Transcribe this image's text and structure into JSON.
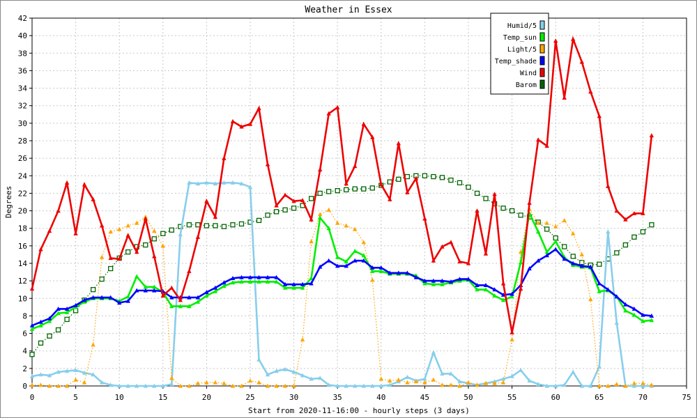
{
  "chart_data": {
    "type": "line",
    "title": "Weather in Essex",
    "xlabel": "Start from 2020-11-16:00 - hourly steps (3 days)",
    "ylabel": "Degrees",
    "xlim": [
      0,
      75
    ],
    "ylim": [
      0,
      42
    ],
    "x_ticks": [
      0,
      5,
      10,
      15,
      20,
      25,
      30,
      35,
      40,
      45,
      50,
      55,
      60,
      65,
      70,
      75
    ],
    "y_ticks": [
      0,
      2,
      4,
      6,
      8,
      10,
      12,
      14,
      16,
      18,
      20,
      22,
      24,
      26,
      28,
      30,
      32,
      34,
      36,
      38,
      40,
      42
    ],
    "grid": true,
    "legend_position": "top-right",
    "series": [
      {
        "name": "Humid/5",
        "color": "#87ceeb",
        "marker": "triangle",
        "line": "solid",
        "values": [
          1.1,
          1.3,
          1.2,
          1.6,
          1.7,
          1.8,
          1.5,
          1.3,
          0.4,
          0.1,
          0.0,
          0.0,
          0.0,
          0.0,
          0.0,
          0.0,
          0.2,
          17.3,
          23.2,
          23.1,
          23.2,
          23.1,
          23.2,
          23.2,
          23.1,
          22.7,
          3.0,
          1.3,
          1.7,
          1.9,
          1.6,
          1.2,
          0.8,
          0.9,
          0.1,
          0.0,
          0.0,
          0.0,
          0.0,
          0.0,
          0.0,
          0.1,
          0.5,
          1.0,
          0.6,
          0.8,
          3.8,
          1.4,
          1.4,
          0.5,
          0.3,
          0.1,
          0.3,
          0.5,
          0.8,
          1.1,
          1.8,
          0.6,
          0.2,
          0.0,
          0.0,
          0.1,
          1.6,
          0.0,
          0.0,
          2.2,
          17.6,
          7.2,
          0.0,
          0.0,
          0.0,
          0.0
        ]
      },
      {
        "name": "Temp_sun",
        "color": "#00ee00",
        "marker": "triangle",
        "line": "solid",
        "values": [
          6.5,
          6.9,
          7.4,
          8.3,
          8.4,
          9.0,
          9.6,
          10.0,
          10.0,
          10.0,
          9.7,
          10.2,
          12.5,
          11.3,
          11.3,
          10.7,
          9.1,
          9.1,
          9.1,
          9.6,
          10.3,
          10.8,
          11.4,
          11.8,
          11.9,
          11.9,
          11.9,
          11.9,
          11.9,
          11.2,
          11.2,
          11.2,
          12.3,
          19.2,
          18.0,
          14.7,
          14.2,
          15.4,
          14.9,
          13.1,
          13.1,
          12.8,
          12.8,
          12.8,
          12.6,
          11.7,
          11.6,
          11.6,
          11.8,
          12.0,
          12.1,
          11.0,
          11.0,
          10.3,
          9.8,
          10.2,
          14.1,
          19.7,
          17.6,
          15.3,
          16.5,
          14.7,
          13.8,
          13.6,
          13.5,
          10.8,
          10.9,
          10.2,
          8.6,
          8.1,
          7.4,
          7.5
        ]
      },
      {
        "name": "Light/5",
        "color": "#ffa500",
        "marker": "triangle",
        "line": "dotted",
        "values": [
          0.1,
          0.1,
          0.0,
          0.0,
          0.0,
          0.7,
          0.4,
          4.7,
          14.7,
          17.6,
          17.9,
          18.3,
          18.6,
          19.3,
          17.7,
          16.0,
          0.9,
          0.0,
          0.0,
          0.3,
          0.4,
          0.4,
          0.3,
          0.0,
          0.0,
          0.6,
          0.4,
          0.0,
          0.0,
          0.0,
          0.0,
          5.3,
          16.5,
          19.6,
          20.1,
          18.6,
          18.3,
          17.9,
          16.4,
          12.1,
          0.8,
          0.6,
          0.7,
          0.4,
          0.5,
          0.4,
          0.7,
          0.1,
          0.1,
          0.0,
          0.4,
          0.1,
          0.3,
          0.3,
          0.4,
          5.3,
          15.3,
          20.2,
          18.6,
          18.6,
          18.2,
          18.9,
          17.4,
          15.0,
          9.9,
          0.0,
          0.0,
          0.2,
          0.0,
          0.3,
          0.3,
          0.1
        ]
      },
      {
        "name": "Temp_shade",
        "color": "#0000ff",
        "marker": "triangle",
        "line": "solid",
        "values": [
          6.9,
          7.3,
          7.7,
          8.8,
          8.8,
          9.2,
          9.8,
          10.1,
          10.1,
          10.1,
          9.5,
          9.7,
          10.9,
          10.9,
          10.9,
          10.8,
          10.1,
          10.1,
          10.1,
          10.1,
          10.7,
          11.2,
          11.8,
          12.3,
          12.4,
          12.4,
          12.4,
          12.4,
          12.4,
          11.6,
          11.6,
          11.6,
          11.7,
          13.6,
          14.3,
          13.7,
          13.7,
          14.3,
          14.3,
          13.5,
          13.5,
          12.9,
          12.9,
          12.9,
          12.4,
          12.0,
          12.0,
          12.0,
          11.9,
          12.2,
          12.2,
          11.5,
          11.5,
          11.0,
          10.4,
          10.5,
          11.5,
          13.4,
          14.3,
          14.9,
          15.6,
          14.5,
          14.0,
          13.7,
          13.6,
          11.7,
          11.0,
          10.2,
          9.3,
          8.8,
          8.1,
          8.0
        ]
      },
      {
        "name": "Wind",
        "color": "#ee0000",
        "marker": "triangle",
        "line": "solid",
        "values": [
          11.1,
          15.6,
          17.7,
          20.0,
          23.2,
          17.4,
          23.0,
          21.3,
          18.3,
          14.6,
          14.5,
          17.2,
          15.3,
          19.1,
          14.8,
          10.3,
          11.2,
          9.8,
          13.1,
          17.0,
          21.1,
          19.3,
          26.0,
          30.2,
          29.6,
          29.9,
          31.7,
          25.3,
          20.6,
          21.8,
          21.1,
          21.2,
          19.0,
          24.7,
          31.1,
          31.8,
          23.1,
          25.1,
          29.9,
          28.4,
          23.0,
          21.3,
          27.7,
          22.1,
          23.7,
          19.1,
          14.3,
          15.9,
          16.4,
          14.2,
          14.0,
          20.0,
          15.1,
          21.9,
          11.7,
          6.1,
          11.1,
          20.9,
          28.1,
          27.4,
          39.4,
          32.9,
          39.6,
          37.0,
          33.6,
          30.8,
          22.8,
          20.0,
          19.0,
          19.7,
          19.7,
          28.6
        ]
      },
      {
        "name": "Barom",
        "color": "#006400",
        "marker": "square",
        "line": "dotted",
        "values": [
          3.6,
          4.9,
          5.7,
          6.4,
          7.6,
          8.6,
          9.8,
          11.0,
          12.2,
          13.4,
          14.6,
          15.3,
          15.9,
          16.1,
          16.8,
          17.4,
          17.8,
          18.2,
          18.4,
          18.4,
          18.3,
          18.3,
          18.2,
          18.4,
          18.5,
          18.7,
          18.9,
          19.5,
          19.9,
          20.1,
          20.3,
          20.6,
          21.4,
          22.0,
          22.2,
          22.3,
          22.4,
          22.5,
          22.5,
          22.6,
          22.9,
          23.3,
          23.6,
          23.9,
          24.0,
          24.0,
          23.9,
          23.8,
          23.5,
          23.2,
          22.7,
          22.0,
          21.4,
          20.8,
          20.3,
          20.0,
          19.5,
          19.3,
          18.7,
          17.9,
          16.9,
          15.9,
          14.8,
          14.1,
          13.8,
          13.9,
          14.5,
          15.2,
          16.1,
          17.0,
          17.6,
          18.4
        ]
      }
    ]
  }
}
